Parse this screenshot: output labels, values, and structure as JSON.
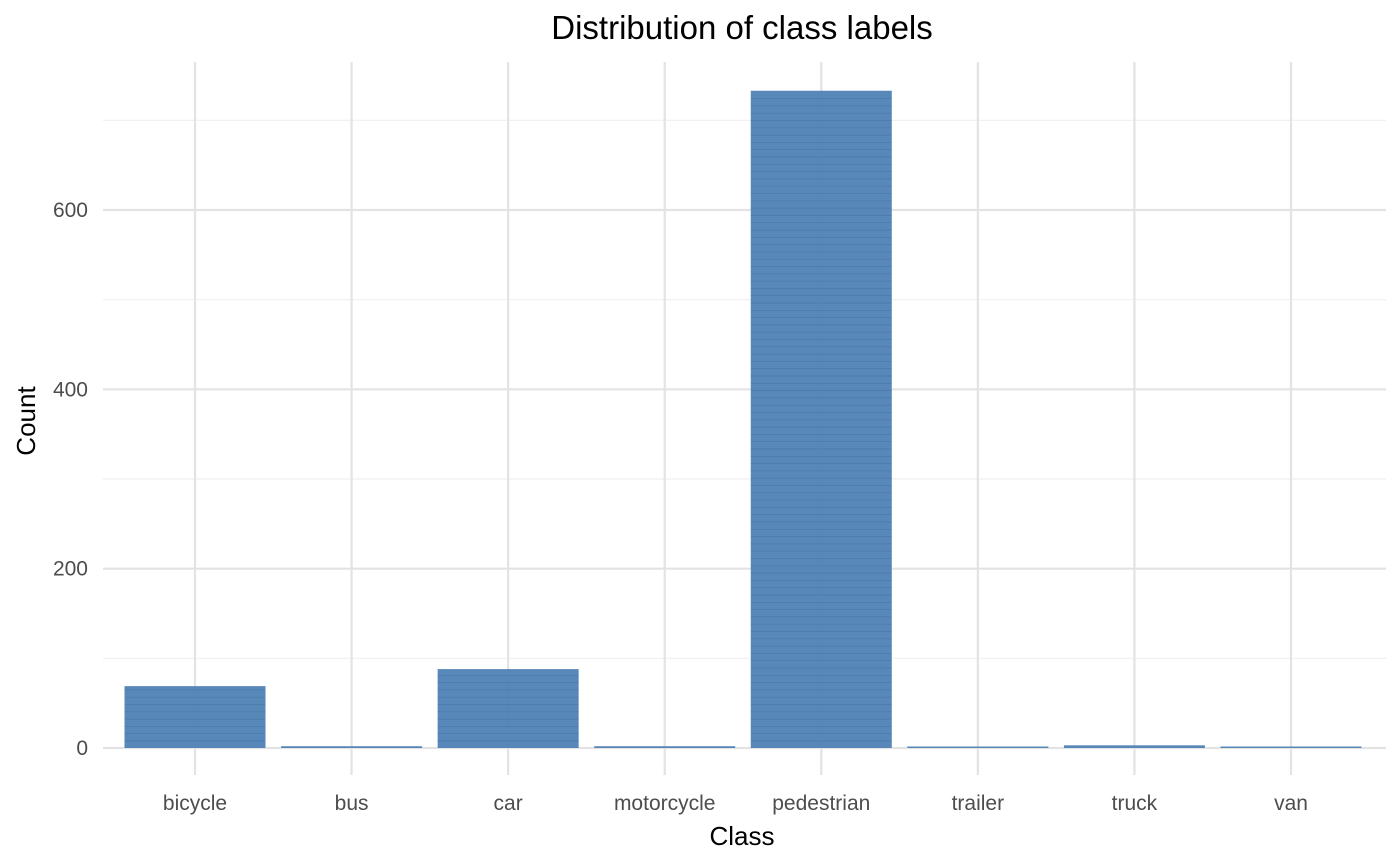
{
  "chart_data": {
    "type": "bar",
    "title": "Distribution of class labels",
    "xlabel": "Class",
    "ylabel": "Count",
    "categories": [
      "bicycle",
      "bus",
      "car",
      "motorcycle",
      "pedestrian",
      "trailer",
      "truck",
      "van"
    ],
    "values": [
      69,
      2,
      88,
      2,
      733,
      1,
      3,
      1
    ],
    "ylim": [
      -30,
      765
    ],
    "yticks": [
      0,
      200,
      400,
      600
    ],
    "yticklabels": [
      "0",
      "200",
      "400",
      "600"
    ],
    "grid": true,
    "bar_color": "#4f81b5"
  }
}
